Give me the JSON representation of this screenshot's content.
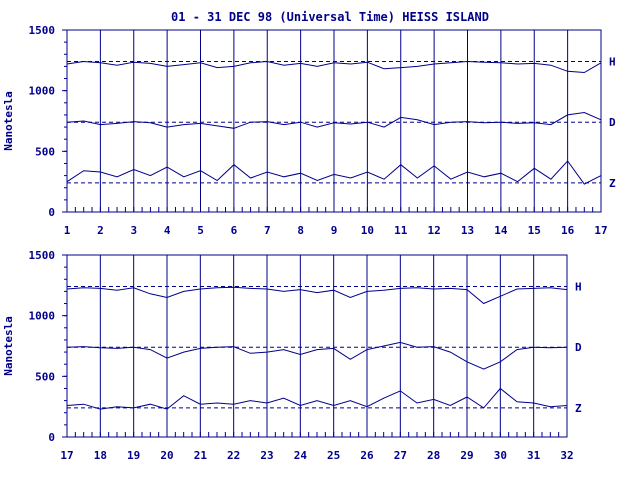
{
  "title": "01 - 31 DEC 98 (Universal Time) HEISS ISLAND",
  "ylabel": "Nanotesla",
  "color": "#00008b",
  "chart_data": [
    {
      "type": "line",
      "xlim": [
        1,
        17
      ],
      "ylim": [
        0,
        1500
      ],
      "x_ticks": [
        "1",
        "2",
        "3",
        "4",
        "5",
        "6",
        "7",
        "8",
        "9",
        "10",
        "11",
        "12",
        "13",
        "14",
        "15",
        "16",
        "17"
      ],
      "y_ticks": [
        "0",
        "500",
        "1000",
        "1500"
      ],
      "baselines": {
        "H": 1240,
        "D": 740,
        "Z": 240
      },
      "series": [
        {
          "name": "H",
          "x": [
            1,
            1.5,
            2,
            2.5,
            3,
            3.5,
            4,
            4.5,
            5,
            5.5,
            6,
            6.5,
            7,
            7.5,
            8,
            8.5,
            9,
            9.5,
            10,
            10.5,
            11,
            11.5,
            12,
            12.5,
            13,
            13.5,
            14,
            14.5,
            15,
            15.5,
            16,
            16.5,
            17
          ],
          "values": [
            1220,
            1240,
            1230,
            1210,
            1235,
            1225,
            1200,
            1215,
            1230,
            1190,
            1200,
            1230,
            1240,
            1210,
            1225,
            1200,
            1230,
            1220,
            1235,
            1180,
            1190,
            1200,
            1220,
            1230,
            1240,
            1235,
            1230,
            1220,
            1225,
            1210,
            1160,
            1150,
            1230
          ]
        },
        {
          "name": "D",
          "x": [
            1,
            1.5,
            2,
            2.5,
            3,
            3.5,
            4,
            4.5,
            5,
            5.5,
            6,
            6.5,
            7,
            7.5,
            8,
            8.5,
            9,
            9.5,
            10,
            10.5,
            11,
            11.5,
            12,
            12.5,
            13,
            13.5,
            14,
            14.5,
            15,
            15.5,
            16,
            16.5,
            17
          ],
          "values": [
            740,
            750,
            720,
            730,
            745,
            735,
            700,
            720,
            730,
            710,
            690,
            740,
            745,
            720,
            740,
            700,
            735,
            725,
            740,
            700,
            780,
            760,
            720,
            740,
            745,
            735,
            740,
            730,
            735,
            720,
            800,
            820,
            760
          ]
        },
        {
          "name": "Z",
          "x": [
            1,
            1.5,
            2,
            2.5,
            3,
            3.5,
            4,
            4.5,
            5,
            5.5,
            6,
            6.5,
            7,
            7.5,
            8,
            8.5,
            9,
            9.5,
            10,
            10.5,
            11,
            11.5,
            12,
            12.5,
            13,
            13.5,
            14,
            14.5,
            15,
            15.5,
            16,
            16.5,
            17
          ],
          "values": [
            250,
            340,
            330,
            290,
            350,
            300,
            370,
            290,
            340,
            260,
            390,
            280,
            330,
            290,
            320,
            260,
            310,
            280,
            330,
            270,
            390,
            280,
            380,
            270,
            330,
            290,
            320,
            250,
            360,
            270,
            420,
            230,
            300
          ]
        }
      ]
    },
    {
      "type": "line",
      "xlim": [
        17,
        32
      ],
      "ylim": [
        0,
        1500
      ],
      "x_ticks": [
        "17",
        "18",
        "19",
        "20",
        "21",
        "22",
        "23",
        "24",
        "25",
        "26",
        "27",
        "28",
        "29",
        "30",
        "31",
        "32"
      ],
      "y_ticks": [
        "0",
        "500",
        "1000",
        "1500"
      ],
      "baselines": {
        "H": 1240,
        "D": 740,
        "Z": 240
      },
      "series": [
        {
          "name": "H",
          "x": [
            17,
            17.5,
            18,
            18.5,
            19,
            19.5,
            20,
            20.5,
            21,
            21.5,
            22,
            22.5,
            23,
            23.5,
            24,
            24.5,
            25,
            25.5,
            26,
            26.5,
            27,
            27.5,
            28,
            28.5,
            29,
            29.5,
            30,
            30.5,
            31,
            31.5,
            32
          ],
          "values": [
            1220,
            1230,
            1225,
            1210,
            1230,
            1180,
            1150,
            1200,
            1220,
            1230,
            1235,
            1225,
            1220,
            1200,
            1215,
            1190,
            1210,
            1150,
            1200,
            1210,
            1225,
            1230,
            1220,
            1225,
            1215,
            1100,
            1160,
            1220,
            1225,
            1230,
            1215
          ]
        },
        {
          "name": "D",
          "x": [
            17,
            17.5,
            18,
            18.5,
            19,
            19.5,
            20,
            20.5,
            21,
            21.5,
            22,
            22.5,
            23,
            23.5,
            24,
            24.5,
            25,
            25.5,
            26,
            26.5,
            27,
            27.5,
            28,
            28.5,
            29,
            29.5,
            30,
            30.5,
            31,
            31.5,
            32
          ],
          "values": [
            740,
            745,
            735,
            730,
            740,
            720,
            650,
            700,
            730,
            740,
            745,
            690,
            700,
            720,
            680,
            720,
            730,
            640,
            720,
            750,
            780,
            740,
            745,
            700,
            620,
            560,
            620,
            720,
            740,
            735,
            740
          ]
        },
        {
          "name": "Z",
          "x": [
            17,
            17.5,
            18,
            18.5,
            19,
            19.5,
            20,
            20.5,
            21,
            21.5,
            22,
            22.5,
            23,
            23.5,
            24,
            24.5,
            25,
            25.5,
            26,
            26.5,
            27,
            27.5,
            28,
            28.5,
            29,
            29.5,
            30,
            30.5,
            31,
            31.5,
            32
          ],
          "values": [
            260,
            270,
            230,
            250,
            240,
            270,
            230,
            340,
            270,
            280,
            270,
            300,
            280,
            320,
            260,
            300,
            260,
            300,
            250,
            320,
            380,
            280,
            310,
            260,
            330,
            240,
            400,
            290,
            280,
            250,
            260
          ]
        }
      ]
    }
  ]
}
